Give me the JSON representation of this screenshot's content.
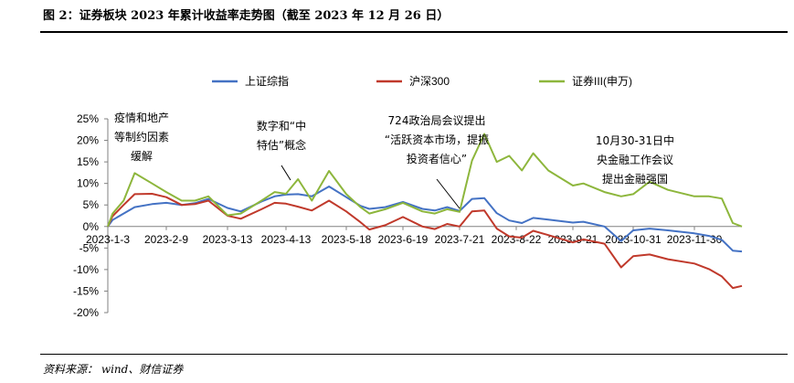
{
  "figure": {
    "title": "图 2：证券板块 2023 年累计收益率走势图（截至 2023 年 12 月 26 日）",
    "source": "资料来源： wind、财信证券"
  },
  "colors": {
    "sse": "#4472C4",
    "hs300": "#C0392B",
    "securities": "#8DB63C",
    "axis": "#808080"
  },
  "chart_data": {
    "type": "line",
    "x_ticks": [
      "2023-1-3",
      "2023-2-9",
      "2023-3-13",
      "2023-4-13",
      "2023-5-18",
      "2023-6-19",
      "2023-7-21",
      "2023-8-22",
      "2023-9-21",
      "2023-10-31",
      "2023-11-30"
    ],
    "y_ticks": [
      "25%",
      "20%",
      "15%",
      "10%",
      "5%",
      "0%",
      "-5%",
      "-10%",
      "-15%",
      "-20%"
    ],
    "ylim": [
      -20,
      25
    ],
    "x_range": [
      "2023-01-03",
      "2023-12-26"
    ],
    "legend_position": "top",
    "series": [
      {
        "name": "上证综指",
        "color_key": "sse",
        "points": [
          [
            "2023-01-03",
            0
          ],
          [
            "2023-01-06",
            1.5
          ],
          [
            "2023-01-13",
            3.0
          ],
          [
            "2023-01-20",
            4.5
          ],
          [
            "2023-01-31",
            5.2
          ],
          [
            "2023-02-09",
            5.5
          ],
          [
            "2023-02-17",
            5.0
          ],
          [
            "2023-02-24",
            5.4
          ],
          [
            "2023-03-03",
            6.4
          ],
          [
            "2023-03-13",
            4.3
          ],
          [
            "2023-03-20",
            3.5
          ],
          [
            "2023-03-31",
            5.8
          ],
          [
            "2023-04-07",
            7.0
          ],
          [
            "2023-04-13",
            7.4
          ],
          [
            "2023-04-20",
            7.5
          ],
          [
            "2023-04-28",
            7.0
          ],
          [
            "2023-05-08",
            9.3
          ],
          [
            "2023-05-18",
            6.8
          ],
          [
            "2023-05-26",
            4.8
          ],
          [
            "2023-05-31",
            4.1
          ],
          [
            "2023-06-09",
            4.5
          ],
          [
            "2023-06-19",
            5.7
          ],
          [
            "2023-06-30",
            4.1
          ],
          [
            "2023-07-07",
            3.7
          ],
          [
            "2023-07-14",
            4.5
          ],
          [
            "2023-07-21",
            3.6
          ],
          [
            "2023-07-28",
            6.4
          ],
          [
            "2023-08-04",
            6.6
          ],
          [
            "2023-08-11",
            3.1
          ],
          [
            "2023-08-18",
            1.4
          ],
          [
            "2023-08-25",
            0.8
          ],
          [
            "2023-08-31",
            2.0
          ],
          [
            "2023-09-08",
            1.6
          ],
          [
            "2023-09-21",
            0.9
          ],
          [
            "2023-09-28",
            1.1
          ],
          [
            "2023-10-12",
            0.0
          ],
          [
            "2023-10-23",
            -3.4
          ],
          [
            "2023-10-31",
            -0.9
          ],
          [
            "2023-11-08",
            -0.5
          ],
          [
            "2023-11-17",
            -0.9
          ],
          [
            "2023-11-30",
            -1.6
          ],
          [
            "2023-12-08",
            -2.2
          ],
          [
            "2023-12-15",
            -3.1
          ],
          [
            "2023-12-21",
            -5.6
          ],
          [
            "2023-12-26",
            -5.8
          ]
        ]
      },
      {
        "name": "沪深300",
        "color_key": "hs300",
        "points": [
          [
            "2023-01-03",
            0
          ],
          [
            "2023-01-06",
            2.4
          ],
          [
            "2023-01-13",
            5.0
          ],
          [
            "2023-01-20",
            7.5
          ],
          [
            "2023-01-31",
            7.6
          ],
          [
            "2023-02-09",
            6.8
          ],
          [
            "2023-02-17",
            5.0
          ],
          [
            "2023-02-24",
            5.2
          ],
          [
            "2023-03-03",
            6.0
          ],
          [
            "2023-03-13",
            2.5
          ],
          [
            "2023-03-20",
            1.8
          ],
          [
            "2023-03-31",
            4.0
          ],
          [
            "2023-04-07",
            5.5
          ],
          [
            "2023-04-13",
            5.3
          ],
          [
            "2023-04-20",
            4.6
          ],
          [
            "2023-04-28",
            3.7
          ],
          [
            "2023-05-08",
            6.0
          ],
          [
            "2023-05-18",
            3.5
          ],
          [
            "2023-05-26",
            1.0
          ],
          [
            "2023-05-31",
            -0.7
          ],
          [
            "2023-06-09",
            0.3
          ],
          [
            "2023-06-19",
            2.2
          ],
          [
            "2023-06-30",
            0.0
          ],
          [
            "2023-07-07",
            -0.6
          ],
          [
            "2023-07-14",
            0.6
          ],
          [
            "2023-07-21",
            0.0
          ],
          [
            "2023-07-28",
            3.5
          ],
          [
            "2023-08-04",
            3.7
          ],
          [
            "2023-08-11",
            -0.5
          ],
          [
            "2023-08-18",
            -2.3
          ],
          [
            "2023-08-25",
            -2.6
          ],
          [
            "2023-08-31",
            -1.0
          ],
          [
            "2023-09-08",
            -2.0
          ],
          [
            "2023-09-21",
            -3.7
          ],
          [
            "2023-09-28",
            -3.0
          ],
          [
            "2023-10-12",
            -4.0
          ],
          [
            "2023-10-23",
            -9.5
          ],
          [
            "2023-10-31",
            -6.9
          ],
          [
            "2023-11-08",
            -6.5
          ],
          [
            "2023-11-17",
            -7.6
          ],
          [
            "2023-11-30",
            -8.6
          ],
          [
            "2023-12-08",
            -9.9
          ],
          [
            "2023-12-15",
            -11.6
          ],
          [
            "2023-12-21",
            -14.3
          ],
          [
            "2023-12-26",
            -13.8
          ]
        ]
      },
      {
        "name": "证券III(申万)",
        "color_key": "securities",
        "points": [
          [
            "2023-01-03",
            0
          ],
          [
            "2023-01-06",
            3.0
          ],
          [
            "2023-01-13",
            6.0
          ],
          [
            "2023-01-20",
            12.4
          ],
          [
            "2023-01-31",
            10.0
          ],
          [
            "2023-02-09",
            8.0
          ],
          [
            "2023-02-17",
            6.0
          ],
          [
            "2023-02-24",
            6.0
          ],
          [
            "2023-03-03",
            7.0
          ],
          [
            "2023-03-13",
            2.6
          ],
          [
            "2023-03-20",
            3.0
          ],
          [
            "2023-03-31",
            6.0
          ],
          [
            "2023-04-07",
            8.0
          ],
          [
            "2023-04-13",
            7.6
          ],
          [
            "2023-04-20",
            11.0
          ],
          [
            "2023-04-28",
            6.0
          ],
          [
            "2023-05-08",
            12.9
          ],
          [
            "2023-05-18",
            7.5
          ],
          [
            "2023-05-26",
            4.5
          ],
          [
            "2023-05-31",
            3.0
          ],
          [
            "2023-06-09",
            4.0
          ],
          [
            "2023-06-19",
            5.5
          ],
          [
            "2023-06-30",
            3.5
          ],
          [
            "2023-07-07",
            3.0
          ],
          [
            "2023-07-14",
            4.0
          ],
          [
            "2023-07-21",
            3.4
          ],
          [
            "2023-07-28",
            15.3
          ],
          [
            "2023-08-04",
            21.5
          ],
          [
            "2023-08-11",
            15.0
          ],
          [
            "2023-08-18",
            16.4
          ],
          [
            "2023-08-25",
            13.0
          ],
          [
            "2023-08-31",
            17.0
          ],
          [
            "2023-09-08",
            13.0
          ],
          [
            "2023-09-21",
            9.5
          ],
          [
            "2023-09-28",
            10.0
          ],
          [
            "2023-10-12",
            8.0
          ],
          [
            "2023-10-23",
            7.0
          ],
          [
            "2023-10-31",
            7.5
          ],
          [
            "2023-11-08",
            10.4
          ],
          [
            "2023-11-17",
            8.5
          ],
          [
            "2023-11-30",
            7.0
          ],
          [
            "2023-12-08",
            7.0
          ],
          [
            "2023-12-15",
            6.5
          ],
          [
            "2023-12-21",
            0.8
          ],
          [
            "2023-12-26",
            0.0
          ]
        ]
      }
    ],
    "annotations": [
      {
        "lines": [
          "疫情和地产",
          "等制约因素",
          "缓解"
        ]
      },
      {
        "lines": [
          "数字和“中",
          "特估”概念"
        ]
      },
      {
        "lines": [
          "724政治局会议提出",
          "“活跃资本市场，提振",
          "投资者信心”"
        ]
      },
      {
        "lines": [
          "10月30-31日中",
          "央金融工作会议",
          "提出金融强国"
        ]
      }
    ]
  }
}
